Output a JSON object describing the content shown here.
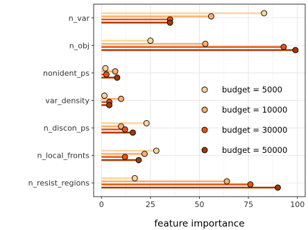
{
  "chart_data": {
    "type": "lollipop-bar",
    "categories": [
      "n_var",
      "n_obj",
      "nonident_ps",
      "var_density",
      "n_discon_ps",
      "n_local_fronts",
      "n_resist_regions"
    ],
    "series": [
      {
        "name": "budget = 5000",
        "color": "#fdd49e",
        "values": [
          83,
          25,
          2,
          1.5,
          23,
          28,
          17
        ]
      },
      {
        "name": "budget = 10000",
        "color": "#fdae6b",
        "values": [
          56,
          53,
          7,
          10,
          10,
          22,
          64
        ]
      },
      {
        "name": "budget = 30000",
        "color": "#e6550d",
        "values": [
          35,
          93,
          2.5,
          4,
          12,
          12,
          76
        ]
      },
      {
        "name": "budget = 50000",
        "color": "#a63603",
        "values": [
          35,
          99,
          8,
          4,
          16,
          19,
          90
        ]
      }
    ],
    "xlabel": "feature importance",
    "ylabel": "",
    "x_ticks": [
      0,
      25,
      50,
      75,
      100
    ],
    "xlim": [
      -4,
      104
    ],
    "grid": true,
    "legend_position": "inside-right"
  }
}
